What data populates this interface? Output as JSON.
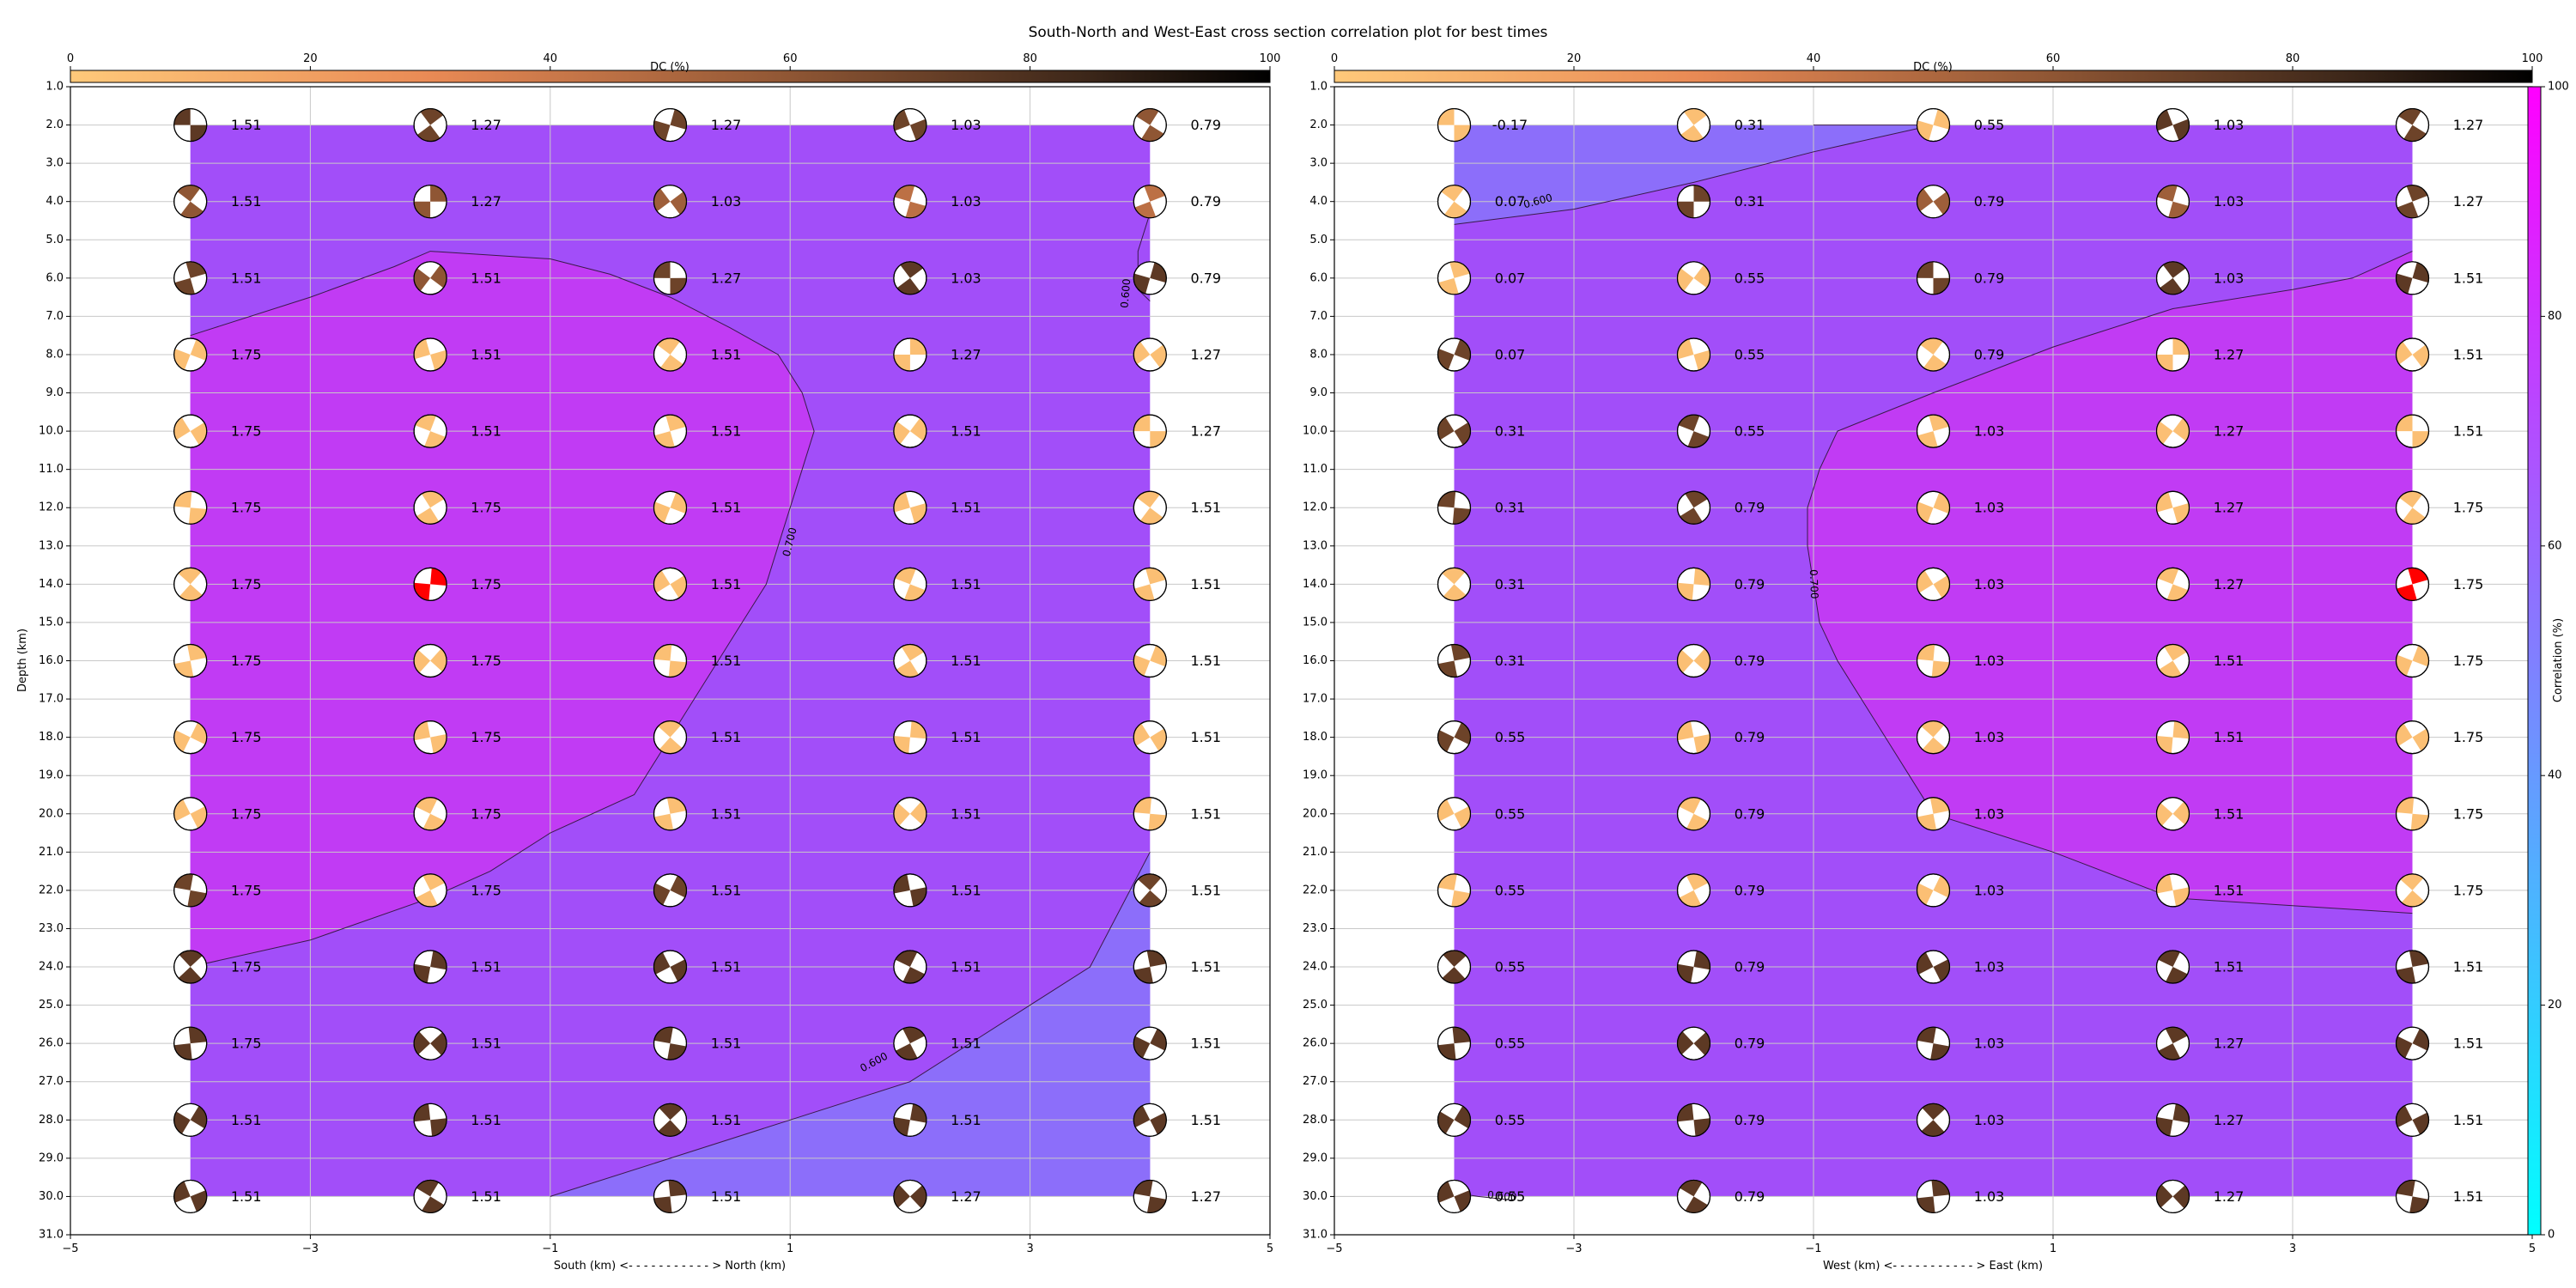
{
  "figure": {
    "title": "South-North and West-East cross section correlation plot for best times"
  },
  "chart_data": [
    {
      "type": "heatmap",
      "name": "south-north",
      "xlabel": "South (km) <- - - - - - - - - - - > North (km)",
      "ylabel": "Depth (km)",
      "xlim": [
        -5,
        5
      ],
      "ylim": [
        31,
        1
      ],
      "x_ticks": [
        "−5",
        "−3",
        "−1",
        "1",
        "3",
        "5"
      ],
      "y_ticks": [
        "1.0",
        "2.0",
        "3.0",
        "4.0",
        "5.0",
        "6.0",
        "7.0",
        "8.0",
        "9.0",
        "10.0",
        "11.0",
        "12.0",
        "13.0",
        "14.0",
        "15.0",
        "16.0",
        "17.0",
        "18.0",
        "19.0",
        "20.0",
        "21.0",
        "22.0",
        "23.0",
        "24.0",
        "25.0",
        "26.0",
        "27.0",
        "28.0",
        "29.0",
        "30.0",
        "31.0"
      ],
      "grid": true,
      "dc_colorbar": {
        "label": "DC (%)",
        "ticks": [
          "0",
          "20",
          "40",
          "60",
          "80",
          "100"
        ]
      },
      "x_positions": [
        -4,
        -2,
        0,
        2,
        4
      ],
      "depths": [
        2,
        4,
        6,
        8,
        10,
        12,
        14,
        16,
        18,
        20,
        22,
        24,
        26,
        28,
        30
      ],
      "time_labels": [
        [
          "1.51",
          "1.27",
          "1.27",
          "1.03",
          "0.79"
        ],
        [
          "1.51",
          "1.27",
          "1.03",
          "1.03",
          "0.79"
        ],
        [
          "1.51",
          "1.51",
          "1.27",
          "1.03",
          "0.79"
        ],
        [
          "1.75",
          "1.51",
          "1.51",
          "1.27",
          "1.27"
        ],
        [
          "1.75",
          "1.51",
          "1.51",
          "1.51",
          "1.27"
        ],
        [
          "1.75",
          "1.75",
          "1.51",
          "1.51",
          "1.51"
        ],
        [
          "1.75",
          "1.75",
          "1.51",
          "1.51",
          "1.51"
        ],
        [
          "1.75",
          "1.75",
          "1.51",
          "1.51",
          "1.51"
        ],
        [
          "1.75",
          "1.75",
          "1.51",
          "1.51",
          "1.51"
        ],
        [
          "1.75",
          "1.75",
          "1.51",
          "1.51",
          "1.51"
        ],
        [
          "1.75",
          "1.75",
          "1.51",
          "1.51",
          "1.51"
        ],
        [
          "1.75",
          "1.51",
          "1.51",
          "1.51",
          "1.51"
        ],
        [
          "1.75",
          "1.51",
          "1.51",
          "1.51",
          "1.51"
        ],
        [
          "1.51",
          "1.51",
          "1.51",
          "1.51",
          "1.51"
        ],
        [
          "1.51",
          "1.51",
          "1.51",
          "1.27",
          "1.27"
        ]
      ],
      "dc_percent": [
        [
          75,
          70,
          70,
          70,
          60
        ],
        [
          60,
          60,
          55,
          45,
          45
        ],
        [
          70,
          60,
          70,
          75,
          75
        ],
        [
          5,
          5,
          5,
          5,
          5
        ],
        [
          5,
          5,
          5,
          5,
          5
        ],
        [
          5,
          5,
          5,
          5,
          5
        ],
        [
          5,
          5,
          5,
          5,
          5
        ],
        [
          5,
          5,
          5,
          5,
          5
        ],
        [
          5,
          5,
          5,
          5,
          5
        ],
        [
          5,
          5,
          5,
          5,
          5
        ],
        [
          70,
          5,
          70,
          75,
          70
        ],
        [
          75,
          75,
          75,
          75,
          75
        ],
        [
          75,
          75,
          75,
          75,
          75
        ],
        [
          75,
          75,
          75,
          75,
          75
        ],
        [
          75,
          75,
          75,
          75,
          75
        ]
      ],
      "best_solution": {
        "x": -2,
        "depth": 14,
        "color": "#ff0000"
      },
      "contours": [
        {
          "level": "0.700",
          "points": [
            [
              -4,
              7.5
            ],
            [
              -3,
              6.5
            ],
            [
              -2.3,
              5.7
            ],
            [
              -2,
              5.3
            ],
            [
              -1,
              5.5
            ],
            [
              -0.5,
              5.9
            ],
            [
              0,
              6.5
            ],
            [
              0.5,
              7.3
            ],
            [
              0.9,
              8
            ],
            [
              1.1,
              9
            ],
            [
              1.2,
              10
            ],
            [
              1.1,
              11
            ],
            [
              1,
              12
            ],
            [
              0.9,
              13
            ],
            [
              0.8,
              14
            ],
            [
              0.6,
              15
            ],
            [
              0.4,
              16
            ],
            [
              0.2,
              17
            ],
            [
              0,
              18
            ],
            [
              -0.3,
              19.5
            ],
            [
              -1,
              20.5
            ],
            [
              -1.5,
              21.5
            ],
            [
              -2,
              22.2
            ],
            [
              -3,
              23.3
            ],
            [
              -4,
              24
            ]
          ]
        },
        {
          "level": "0.600",
          "points": [
            [
              -1,
              30
            ],
            [
              0,
              29
            ],
            [
              1,
              28
            ],
            [
              2,
              27
            ],
            [
              3,
              25
            ],
            [
              3.5,
              24
            ],
            [
              4,
              21
            ]
          ]
        },
        {
          "level": "0.600",
          "points": [
            [
              4,
              4.3
            ],
            [
              3.9,
              5.3
            ],
            [
              3.9,
              6.3
            ],
            [
              4,
              6.6
            ]
          ]
        }
      ],
      "contour_labels": [
        {
          "text": "0.700",
          "x": 1.0,
          "depth": 12.9,
          "angle": -76
        },
        {
          "text": "0.600",
          "x": 1.7,
          "depth": 26.5,
          "angle": -28
        },
        {
          "text": "0.600",
          "x": 3.8,
          "depth": 6.4,
          "angle": -85
        }
      ],
      "regions": {
        "high": "#c13bf4",
        "mid": "#a24ef9",
        "low": "#8c6efa"
      }
    },
    {
      "type": "heatmap",
      "name": "west-east",
      "xlabel": "West (km) <- - - - - - - - - - - > East (km)",
      "ylabel": "",
      "xlim": [
        -5,
        5
      ],
      "ylim": [
        31,
        1
      ],
      "x_ticks": [
        "−5",
        "−3",
        "−1",
        "1",
        "3",
        "5"
      ],
      "y_ticks": [
        "1.0",
        "2.0",
        "3.0",
        "4.0",
        "5.0",
        "6.0",
        "7.0",
        "8.0",
        "9.0",
        "10.0",
        "11.0",
        "12.0",
        "13.0",
        "14.0",
        "15.0",
        "16.0",
        "17.0",
        "18.0",
        "19.0",
        "20.0",
        "21.0",
        "22.0",
        "23.0",
        "24.0",
        "25.0",
        "26.0",
        "27.0",
        "28.0",
        "29.0",
        "30.0",
        "31.0"
      ],
      "grid": true,
      "dc_colorbar": {
        "label": "DC (%)",
        "ticks": [
          "0",
          "20",
          "40",
          "60",
          "80",
          "100"
        ]
      },
      "corr_colorbar": {
        "label": "Correlation (%)",
        "ticks": [
          "0",
          "20",
          "40",
          "60",
          "80",
          "100"
        ],
        "range": [
          0,
          100
        ]
      },
      "x_positions": [
        -4,
        -2,
        0,
        2,
        4
      ],
      "depths": [
        2,
        4,
        6,
        8,
        10,
        12,
        14,
        16,
        18,
        20,
        22,
        24,
        26,
        28,
        30
      ],
      "time_labels": [
        [
          "-0.17",
          "0.31",
          "0.55",
          "1.03",
          "1.27"
        ],
        [
          "0.07",
          "0.31",
          "0.79",
          "1.03",
          "1.27"
        ],
        [
          "0.07",
          "0.55",
          "0.79",
          "1.03",
          "1.51"
        ],
        [
          "0.07",
          "0.55",
          "0.79",
          "1.27",
          "1.51"
        ],
        [
          "0.31",
          "0.55",
          "1.03",
          "1.27",
          "1.51"
        ],
        [
          "0.31",
          "0.79",
          "1.03",
          "1.27",
          "1.75"
        ],
        [
          "0.31",
          "0.79",
          "1.03",
          "1.27",
          "1.75"
        ],
        [
          "0.31",
          "0.79",
          "1.03",
          "1.51",
          "1.75"
        ],
        [
          "0.55",
          "0.79",
          "1.03",
          "1.51",
          "1.75"
        ],
        [
          "0.55",
          "0.79",
          "1.03",
          "1.51",
          "1.75"
        ],
        [
          "0.55",
          "0.79",
          "1.03",
          "1.51",
          "1.75"
        ],
        [
          "0.55",
          "0.79",
          "1.03",
          "1.51",
          "1.51"
        ],
        [
          "0.55",
          "0.79",
          "1.03",
          "1.27",
          "1.51"
        ],
        [
          "0.55",
          "0.79",
          "1.03",
          "1.27",
          "1.51"
        ],
        [
          "0.55",
          "0.79",
          "1.03",
          "1.27",
          "1.51"
        ]
      ],
      "dc_percent": [
        [
          5,
          5,
          5,
          75,
          70
        ],
        [
          5,
          70,
          55,
          55,
          70
        ],
        [
          5,
          5,
          70,
          75,
          75
        ],
        [
          70,
          5,
          5,
          5,
          5
        ],
        [
          70,
          70,
          5,
          5,
          5
        ],
        [
          70,
          70,
          5,
          5,
          5
        ],
        [
          5,
          5,
          5,
          5,
          5
        ],
        [
          70,
          5,
          5,
          5,
          5
        ],
        [
          70,
          5,
          5,
          5,
          5
        ],
        [
          5,
          5,
          5,
          5,
          5
        ],
        [
          5,
          5,
          5,
          5,
          5
        ],
        [
          75,
          75,
          75,
          75,
          75
        ],
        [
          75,
          75,
          75,
          75,
          75
        ],
        [
          75,
          75,
          75,
          75,
          75
        ],
        [
          75,
          75,
          75,
          75,
          75
        ]
      ],
      "best_solution": {
        "x": 4,
        "depth": 14,
        "color": "#ff0000"
      },
      "contours": [
        {
          "level": "0.700",
          "points": [
            [
              4,
              5.3
            ],
            [
              3.5,
              6
            ],
            [
              3,
              6.3
            ],
            [
              2,
              6.8
            ],
            [
              1,
              7.8
            ],
            [
              0,
              9
            ],
            [
              -0.8,
              10
            ],
            [
              -0.95,
              11
            ],
            [
              -1.05,
              12
            ],
            [
              -1.05,
              13
            ],
            [
              -1,
              14
            ],
            [
              -0.95,
              15
            ],
            [
              -0.8,
              16
            ],
            [
              -0.6,
              17
            ],
            [
              -0.4,
              18
            ],
            [
              -0.2,
              19
            ],
            [
              0,
              20
            ],
            [
              1,
              21
            ],
            [
              2,
              22.2
            ],
            [
              3,
              22.4
            ],
            [
              4,
              22.6
            ]
          ]
        },
        {
          "level": "0.600",
          "points": [
            [
              -4,
              4.6
            ],
            [
              -3,
              4.2
            ],
            [
              -2,
              3.5
            ],
            [
              -1,
              2.7
            ],
            [
              0,
              2
            ],
            [
              -1,
              2
            ]
          ]
        },
        {
          "level": "0.600",
          "points": [
            [
              -4,
              29.9
            ],
            [
              -3.8,
              30
            ],
            [
              -3.5,
              30.1
            ]
          ]
        }
      ],
      "contour_labels": [
        {
          "text": "0.600",
          "x": -3.3,
          "depth": 4.0,
          "angle": -15
        },
        {
          "text": "0.700",
          "x": -1.0,
          "depth": 14.0,
          "angle": 88
        },
        {
          "text": "0.600",
          "x": -3.6,
          "depth": 30.0,
          "angle": 5
        }
      ],
      "regions": {
        "high": "#c13bf4",
        "mid": "#a24ef9",
        "low": "#8c6efa"
      }
    }
  ]
}
